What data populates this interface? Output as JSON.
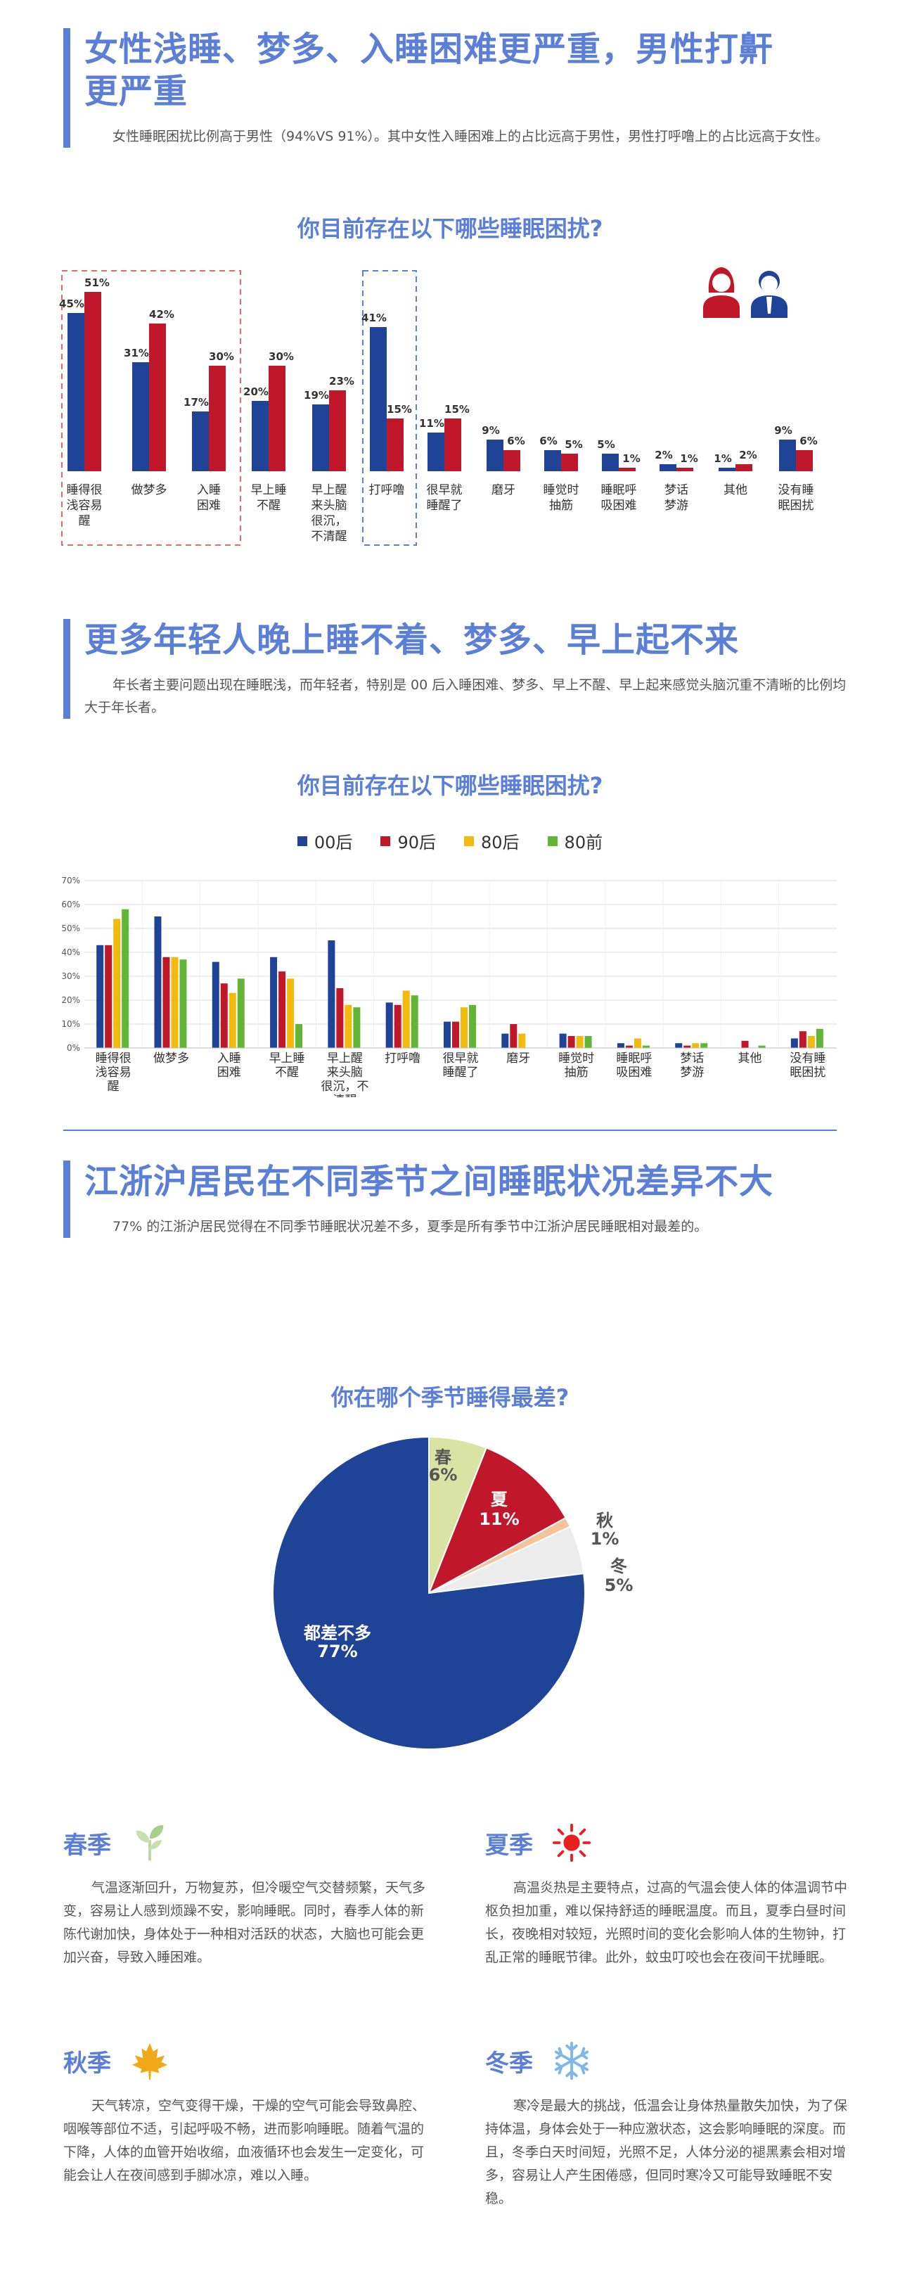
{
  "section1": {
    "title_line1": "女性浅睡、梦多、入睡困难更严重，男性打鼾",
    "title_line2": "更严重",
    "desc": "女性睡眠困扰比例高于男性（94%VS 91%）。其中女性入睡困难上的占比远高于男性，男性打呼噜上的占比远高于女性。"
  },
  "section2": {
    "title": "更多年轻人晚上睡不着、梦多、早上起不来",
    "desc": "年长者主要问题出现在睡眠浅，而年轻者，特别是 00 后入睡困难、梦多、早上不醒、早上起来感觉头脑沉重不清晰的比例均大于年长者。"
  },
  "section3": {
    "title": "江浙沪居民在不同季节之间睡眠状况差异不大",
    "desc": "77% 的江浙沪居民觉得在不同季节睡眠状况差不多，夏季是所有季节中江浙沪居民睡眠相对最差的。"
  },
  "colors": {
    "male": "#1f4396",
    "female": "#c0172b",
    "accent": "#5b7fd6",
    "c00": "#1f4396",
    "c90": "#c0172b",
    "c80": "#f2b90f",
    "c80q": "#62b536"
  },
  "chart_data": [
    {
      "type": "bar",
      "title": "你目前存在以下哪些睡眠困扰?",
      "categories": [
        "睡得很浅容易醒",
        "做梦多",
        "入睡困难",
        "早上睡不醒",
        "早上醒来头脑很沉，不清醒",
        "打呼噜",
        "很早就睡醒了",
        "磨牙",
        "睡觉时抽筋",
        "睡眠呼吸困难",
        "梦话梦游",
        "其他",
        "没有睡眠困扰"
      ],
      "category_lines": [
        [
          "睡得很",
          "浅容易",
          "醒"
        ],
        [
          "做梦多"
        ],
        [
          "入睡",
          "困难"
        ],
        [
          "早上睡",
          "不醒"
        ],
        [
          "早上醒",
          "来头脑",
          "很沉，",
          "不清醒"
        ],
        [
          "打呼噜"
        ],
        [
          "很早就",
          "睡醒了"
        ],
        [
          "磨牙"
        ],
        [
          "睡觉时",
          "抽筋"
        ],
        [
          "睡眠呼",
          "吸困难"
        ],
        [
          "梦话",
          "梦游"
        ],
        [
          "其他"
        ],
        [
          "没有睡",
          "眠困扰"
        ]
      ],
      "series": [
        {
          "name": "男性",
          "icon": "male-icon",
          "values": [
            45,
            31,
            17,
            20,
            19,
            41,
            11,
            9,
            6,
            5,
            2,
            1,
            9
          ]
        },
        {
          "name": "女性",
          "icon": "female-icon",
          "values": [
            51,
            42,
            30,
            30,
            23,
            15,
            15,
            6,
            5,
            1,
            1,
            2,
            6
          ]
        }
      ],
      "ylim": [
        0,
        60
      ]
    },
    {
      "type": "bar",
      "title": "你目前存在以下哪些睡眠困扰?",
      "categories": [
        "睡得很浅容易醒",
        "做梦多",
        "入睡困难",
        "早上睡不醒",
        "早上醒来头脑很沉，不清醒",
        "打呼噜",
        "很早就睡醒了",
        "磨牙",
        "睡觉时抽筋",
        "睡眠呼吸困难",
        "梦话梦游",
        "其他",
        "没有睡眠困扰"
      ],
      "category_lines": [
        [
          "睡得很",
          "浅容易",
          "醒"
        ],
        [
          "做梦多"
        ],
        [
          "入睡",
          "困难"
        ],
        [
          "早上睡",
          "不醒"
        ],
        [
          "早上醒",
          "来头脑",
          "很沉，不",
          "清醒"
        ],
        [
          "打呼噜"
        ],
        [
          "很早就",
          "睡醒了"
        ],
        [
          "磨牙"
        ],
        [
          "睡觉时",
          "抽筋"
        ],
        [
          "睡眠呼",
          "吸困难"
        ],
        [
          "梦话",
          "梦游"
        ],
        [
          "其他"
        ],
        [
          "没有睡",
          "眠困扰"
        ]
      ],
      "series": [
        {
          "name": "00后",
          "values": [
            43,
            55,
            36,
            38,
            45,
            19,
            11,
            6,
            6,
            2,
            2,
            0,
            4
          ]
        },
        {
          "name": "90后",
          "values": [
            43,
            38,
            27,
            32,
            25,
            18,
            11,
            10,
            5,
            1,
            1,
            3,
            7
          ]
        },
        {
          "name": "80后",
          "values": [
            54,
            38,
            23,
            29,
            18,
            24,
            17,
            6,
            5,
            4,
            2,
            0,
            5
          ]
        },
        {
          "name": "80前",
          "values": [
            58,
            37,
            29,
            10,
            17,
            22,
            18,
            0,
            5,
            1,
            2,
            1,
            8
          ]
        }
      ],
      "yticks": [
        "0%",
        "10%",
        "20%",
        "30%",
        "40%",
        "50%",
        "60%",
        "70%"
      ],
      "ylim": [
        0,
        70
      ]
    },
    {
      "type": "pie",
      "title": "你在哪个季节睡得最差?",
      "slices": [
        {
          "label": "春",
          "value": 6,
          "text": "6%",
          "color": "#d9e3a3"
        },
        {
          "label": "夏",
          "value": 11,
          "text": "11%",
          "color": "#c0172b"
        },
        {
          "label": "秋",
          "value": 1,
          "text": "1%",
          "color": "#f4c39a"
        },
        {
          "label": "冬",
          "value": 5,
          "text": "5%",
          "color": "#ececec"
        },
        {
          "label": "都差不多",
          "value": 77,
          "text": "77%",
          "color": "#1f4396"
        }
      ]
    }
  ],
  "seasons": [
    {
      "name": "春季",
      "icon": "sprout-icon",
      "text": "气温逐渐回升，万物复苏，但冷暖空气交替频繁，天气多变，容易让人感到烦躁不安，影响睡眠。同时，春季人体的新陈代谢加快，身体处于一种相对活跃的状态，大脑也可能会更加兴奋，导致入睡困难。"
    },
    {
      "name": "夏季",
      "icon": "sun-icon",
      "text": "高温炎热是主要特点，过高的气温会使人体的体温调节中枢负担加重，难以保持舒适的睡眠温度。而且，夏季白昼时间长，夜晚相对较短，光照时间的变化会影响人体的生物钟，打乱正常的睡眠节律。此外，蚊虫叮咬也会在夜间干扰睡眠。"
    },
    {
      "name": "秋季",
      "icon": "maple-leaf-icon",
      "text": "天气转凉，空气变得干燥，干燥的空气可能会导致鼻腔、咽喉等部位不适，引起呼吸不畅，进而影响睡眠。随着气温的下降，人体的血管开始收缩，血液循环也会发生一定变化，可能会让人在夜间感到手脚冰凉，难以入睡。"
    },
    {
      "name": "冬季",
      "icon": "snowflake-icon",
      "text": "寒冷是最大的挑战，低温会让身体热量散失加快，为了保持体温，身体会处于一种应激状态，这会影响睡眠的深度。而且，冬季白天时间短，光照不足，人体分泌的褪黑素会相对增多，容易让人产生困倦感，但同时寒冷又可能导致睡眠不安稳。"
    }
  ]
}
